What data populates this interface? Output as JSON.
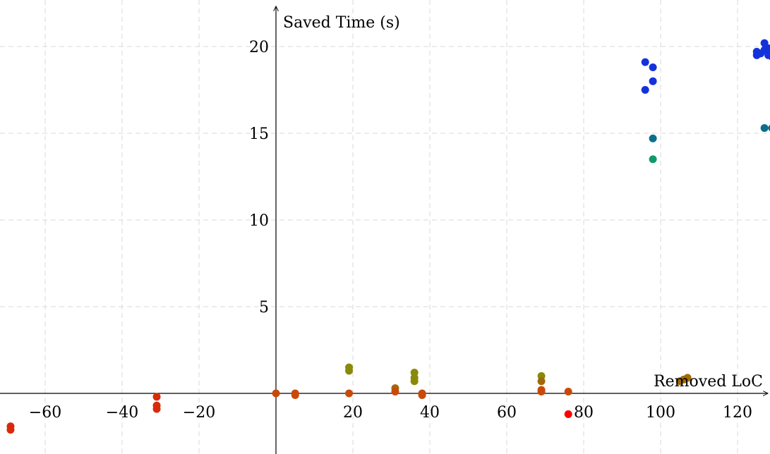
{
  "chart_data": {
    "type": "scatter",
    "xlabel": "Removed LoC",
    "ylabel": "Saved Time (s)",
    "xlim": [
      -69,
      129
    ],
    "ylim": [
      -4.5,
      22.5
    ],
    "grid": true,
    "x_ticks": [
      -60,
      -40,
      -20,
      20,
      40,
      60,
      80,
      100,
      120
    ],
    "x_tick_labels": [
      "−60",
      "−40",
      "−20",
      "20",
      "40",
      "60",
      "80",
      "100",
      "120"
    ],
    "y_ticks": [
      5,
      10,
      15,
      20
    ],
    "y_tick_labels": [
      "5",
      "10",
      "15",
      "20"
    ],
    "series": [
      {
        "color": "#1432dc",
        "points": [
          [
            96,
            19.1
          ],
          [
            98,
            18.8
          ],
          [
            98,
            18.0
          ],
          [
            96,
            17.5
          ],
          [
            125,
            19.5
          ],
          [
            125,
            19.7
          ],
          [
            126,
            19.6
          ],
          [
            127,
            20.2
          ],
          [
            127,
            19.8
          ],
          [
            128,
            19.9
          ],
          [
            128,
            19.5
          ],
          [
            129,
            19.4
          ]
        ]
      },
      {
        "color": "#0a6e8c",
        "points": [
          [
            98,
            14.7
          ],
          [
            127,
            15.3
          ],
          [
            129,
            15.3
          ]
        ]
      },
      {
        "color": "#0f9970",
        "points": [
          [
            98,
            13.5
          ]
        ]
      },
      {
        "color": "#8a8a0a",
        "points": [
          [
            19,
            1.5
          ],
          [
            19,
            1.3
          ],
          [
            36,
            1.2
          ],
          [
            36,
            0.9
          ],
          [
            36,
            0.7
          ],
          [
            69,
            1.0
          ]
        ]
      },
      {
        "color": "#a06a0a",
        "points": [
          [
            69,
            0.7
          ],
          [
            105,
            0.7
          ],
          [
            106,
            0.8
          ],
          [
            107,
            0.9
          ],
          [
            31,
            0.3
          ]
        ]
      },
      {
        "color": "#c84a0a",
        "points": [
          [
            0,
            0.0
          ],
          [
            5,
            0.0
          ],
          [
            5,
            -0.1
          ],
          [
            19,
            0.0
          ],
          [
            31,
            0.1
          ],
          [
            38,
            0.0
          ],
          [
            38,
            -0.1
          ],
          [
            69,
            0.1
          ],
          [
            69,
            0.2
          ],
          [
            76,
            0.1
          ]
        ]
      },
      {
        "color": "#d82a0a",
        "points": [
          [
            -69,
            -1.9
          ],
          [
            -69,
            -2.1
          ],
          [
            -31,
            -0.2
          ],
          [
            -31,
            -0.7
          ],
          [
            -31,
            -0.9
          ]
        ]
      },
      {
        "color": "#ff0000",
        "points": [
          [
            76,
            -1.2
          ]
        ]
      }
    ]
  }
}
